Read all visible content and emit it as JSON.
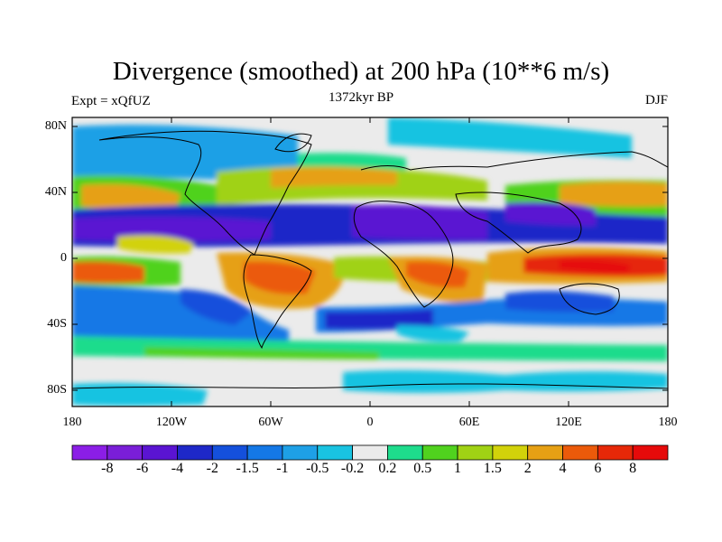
{
  "header": {
    "title": "Divergence (smoothed) at 200 hPa (10**6 m/s)",
    "experiment": "Expt = xQfUZ",
    "period": "1372kyr BP",
    "season": "DJF"
  },
  "map": {
    "lat_ticks": [
      "80N",
      "40N",
      "0",
      "40S",
      "80S"
    ],
    "lon_ticks": [
      "180",
      "120W",
      "60W",
      "0",
      "60E",
      "120E",
      "180"
    ],
    "lon_range": [
      -180,
      180
    ],
    "lat_range": [
      -90,
      90
    ]
  },
  "colorbar": {
    "labels": [
      "-8",
      "-6",
      "-4",
      "-2",
      "-1.5",
      "-1",
      "-0.5",
      "-0.2",
      "0.2",
      "0.5",
      "1",
      "1.5",
      "2",
      "4",
      "6",
      "8"
    ],
    "colors": [
      "#8b1ee6",
      "#7a1ed8",
      "#5a14d2",
      "#1e28c8",
      "#1450dc",
      "#1478e6",
      "#1ea0e6",
      "#19c3e1",
      "#ebebeb",
      "#1edc8c",
      "#50d21e",
      "#a0d214",
      "#d2d20a",
      "#e6a014",
      "#eb5a0a",
      "#e62808",
      "#e60a0a"
    ]
  }
}
